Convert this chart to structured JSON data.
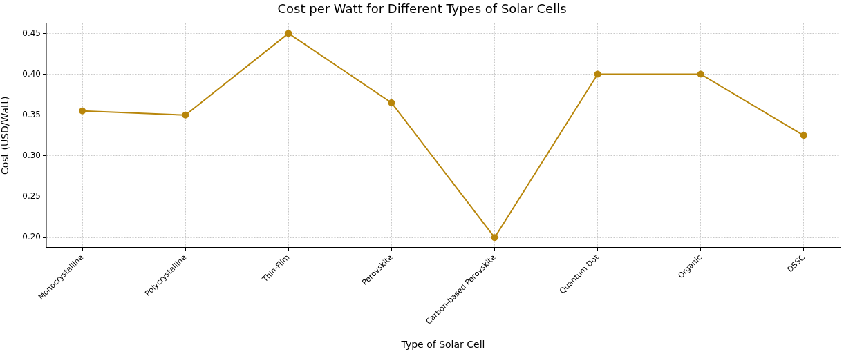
{
  "chart_data": {
    "type": "line",
    "title": "Cost per Watt for Different Types of Solar Cells",
    "xlabel": "Type of Solar Cell",
    "ylabel": "Cost (USD/Watt)",
    "categories": [
      "Monocrystalline",
      "Polycrystalline",
      "Thin-Film",
      "Perovskite",
      "Carbon-based Perovskite",
      "Quantum Dot",
      "Organic",
      "DSSC"
    ],
    "series": [
      {
        "color": "#b8860b",
        "values": [
          0.355,
          0.35,
          0.45,
          0.365,
          0.2,
          0.4,
          0.4,
          0.325
        ]
      }
    ],
    "ylim": [
      0.1875,
      0.4625
    ],
    "yticks": [
      {
        "value": 0.2,
        "label": "0.20"
      },
      0.25,
      {
        "value": 0.3,
        "label": "0.30"
      },
      0.35,
      {
        "value": 0.4,
        "label": "0.40"
      },
      0.45
    ],
    "grid": true,
    "marker": "circle",
    "line_style": "solid",
    "legend": false
  }
}
